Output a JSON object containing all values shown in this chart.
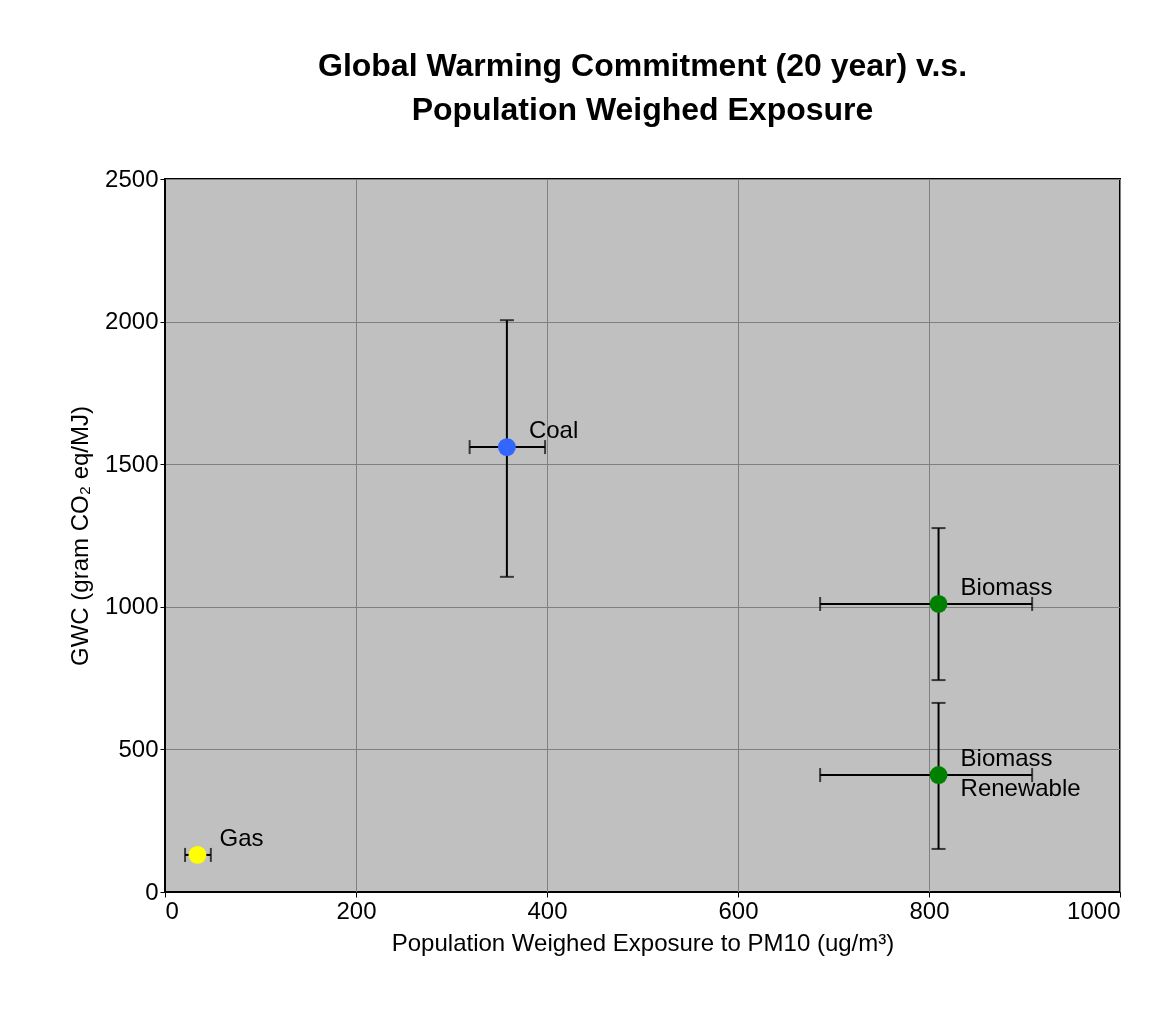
{
  "chart_data": {
    "type": "scatter",
    "title": "Global Warming Commitment (20 year) v.s.\nPopulation Weighed Exposure",
    "xlabel": "Population Weighed Exposure to PM10 (ug/m³)",
    "ylabel": "GWC (gram CO₂ eq/MJ)",
    "x": [
      358,
      810,
      810,
      34
    ],
    "values": [
      1560,
      1010,
      410,
      130
    ],
    "colors": [
      "#3366ff",
      "#008000",
      "#008000",
      "#ffff00"
    ],
    "errors": [
      [
        1105,
        2005
      ],
      [
        743,
        1276
      ],
      [
        151,
        663
      ],
      null
    ],
    "xerrors": [
      [
        319,
        398
      ],
      [
        686,
        908
      ],
      [
        686,
        908
      ],
      [
        21,
        48
      ]
    ],
    "annotations": [
      {
        "text": "Coal",
        "x": 358,
        "y": 1560
      },
      {
        "text": "Biomass",
        "x": 810,
        "y": 1010
      },
      {
        "text": "Biomass\nRenewable",
        "x": 810,
        "y": 410
      },
      {
        "text": "Gas",
        "x": 34,
        "y": 130
      }
    ],
    "xlim": [
      0,
      1000
    ],
    "xticks": [
      0,
      200,
      400,
      600,
      800,
      1000
    ],
    "ylim": [
      0,
      2500
    ],
    "yticks": [
      0,
      500,
      1000,
      1500,
      2000,
      2500
    ],
    "grid": true,
    "marker": "circle",
    "legend": false
  }
}
